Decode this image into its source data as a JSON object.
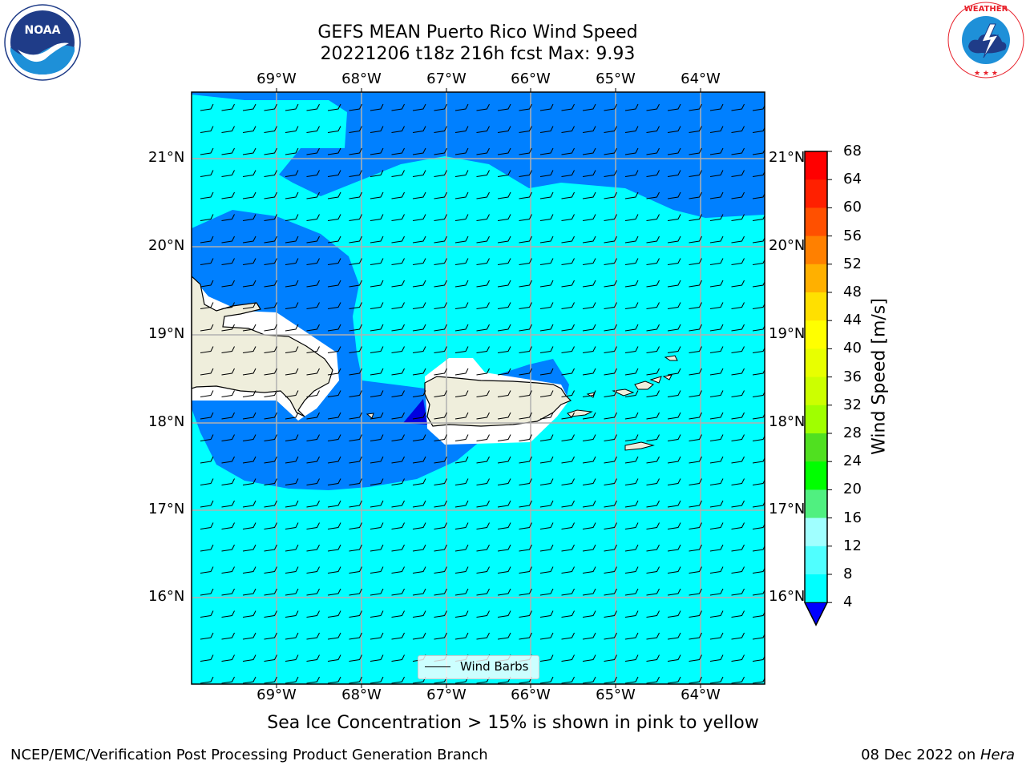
{
  "header": {
    "title_line1": "GEFS MEAN Puerto Rico Wind Speed",
    "title_line2": "20221206 t18z 216h fcst   Max: 9.93"
  },
  "map": {
    "lon_ticks": [
      "69°W",
      "68°W",
      "67°W",
      "66°W",
      "65°W",
      "64°W"
    ],
    "lat_ticks": [
      "21°N",
      "20°N",
      "19°N",
      "18°N",
      "17°N",
      "16°N"
    ],
    "extent": {
      "lon_min": -70.0,
      "lon_max": -63.25,
      "lat_min": 15.0,
      "lat_max": 21.75
    },
    "land_color": "#efeedc",
    "colors": {
      "c4_8": "#0080ff",
      "c8_12": "#00ffff",
      "below4": "#0000e0",
      "grid": "#b0b0b0"
    },
    "legend_label": "Wind Barbs"
  },
  "colorbar": {
    "label": "Wind Speed [m/s]",
    "ticks": [
      "68",
      "64",
      "60",
      "56",
      "52",
      "48",
      "44",
      "40",
      "36",
      "32",
      "28",
      "24",
      "20",
      "16",
      "12",
      "8",
      "4"
    ],
    "colors": [
      "#ff0000",
      "#ff2000",
      "#ff5000",
      "#ff8000",
      "#ffb000",
      "#ffe000",
      "#ffff00",
      "#e8ff00",
      "#ccff00",
      "#a0ff00",
      "#50e020",
      "#00ff00",
      "#50f080",
      "#a0ffff",
      "#50ffff",
      "#00ffff",
      "#0080ff"
    ],
    "extend_color": "#0000ff"
  },
  "footer": {
    "subtitle": "Sea Ice Concentration > 15% is shown in pink to yellow",
    "left": "NCEP/EMC/Verification Post Processing Product Generation Branch",
    "right_date": "08 Dec 2022 on ",
    "right_host": "Hera"
  }
}
